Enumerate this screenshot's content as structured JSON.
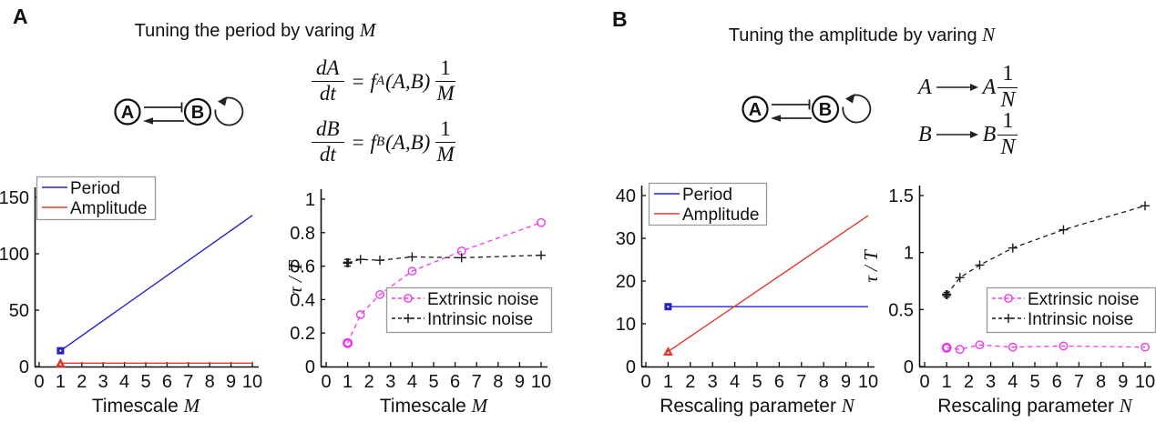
{
  "figure": {
    "panels": [
      {
        "label": "A",
        "title_text": "Tuning the period by varing ",
        "title_var": "M",
        "diagram": {
          "node_a": "A",
          "node_b": "B"
        },
        "equations": [
          {
            "lhs_num": "dA",
            "lhs_den": "dt",
            "equals": "=",
            "f": "f",
            "f_sub": "A",
            "args": "(A,B)",
            "rhs_num": "1",
            "rhs_den": "M"
          },
          {
            "lhs_num": "dB",
            "lhs_den": "dt",
            "equals": "=",
            "f": "f",
            "f_sub": "B",
            "args": "(A,B)",
            "rhs_num": "1",
            "rhs_den": "M"
          }
        ]
      },
      {
        "label": "B",
        "title_text": "Tuning the amplitude by varing ",
        "title_var": "N",
        "diagram": {
          "node_a": "A",
          "node_b": "B"
        },
        "reactions": [
          {
            "lhs": "A",
            "rhs": "A",
            "frac_num": "1",
            "frac_den": "N"
          },
          {
            "lhs": "B",
            "rhs": "B",
            "frac_num": "1",
            "frac_den": "N"
          }
        ]
      }
    ]
  },
  "colors": {
    "period": "#2222CC",
    "amplitude": "#E53A2E",
    "extrinsic": "#EE3BEE",
    "intrinsic": "#1A1A1A",
    "axis": "#111111",
    "legend_border": "#9A9A9A"
  },
  "chart_data": [
    {
      "id": "period-vs-timescale",
      "type": "line",
      "xlabel": "Timescale ",
      "xlabel_var": "M",
      "ylabel": null,
      "xlim": [
        0,
        10
      ],
      "ylim": [
        0,
        157
      ],
      "xticks": [
        0,
        1,
        2,
        3,
        4,
        5,
        6,
        7,
        8,
        9,
        10
      ],
      "ytick_values": [
        0,
        50,
        100,
        150
      ],
      "ytick_labels": [
        "0",
        "50",
        "100",
        "150"
      ],
      "legend_position": "top-left",
      "series": [
        {
          "name": "Period",
          "color": "#2222CC",
          "line_style": "solid",
          "marker": "square",
          "marker_only_first": true,
          "emphasize_first": false,
          "error_bar_first": null,
          "x": [
            1,
            10
          ],
          "y": [
            14,
            134
          ]
        },
        {
          "name": "Amplitude",
          "color": "#E53A2E",
          "line_style": "solid",
          "marker": "triangle",
          "marker_only_first": true,
          "emphasize_first": false,
          "error_bar_first": null,
          "x": [
            1,
            10
          ],
          "y": [
            3,
            3
          ]
        }
      ]
    },
    {
      "id": "noise-vs-timescale",
      "type": "line",
      "xlabel": "Timescale ",
      "xlabel_var": "M",
      "ylabel": "τ / T",
      "xlim": [
        0,
        10
      ],
      "ylim": [
        0,
        1.03
      ],
      "xticks": [
        0,
        1,
        2,
        3,
        4,
        5,
        6,
        7,
        8,
        9,
        10
      ],
      "ytick_values": [
        0,
        0.2,
        0.4,
        0.6,
        0.8,
        1
      ],
      "ytick_labels": [
        "0",
        "0.2",
        "0.4",
        "0.6",
        "0.8",
        "1"
      ],
      "legend_position": "mid-right",
      "series": [
        {
          "name": "Extrinsic noise",
          "color": "#EE3BEE",
          "line_style": "dashed",
          "marker": "circle",
          "marker_only_first": false,
          "emphasize_first": true,
          "error_bar_first": null,
          "x": [
            1,
            1.6,
            2.5,
            4,
            6.3,
            10
          ],
          "y": [
            0.14,
            0.31,
            0.43,
            0.57,
            0.69,
            0.86
          ]
        },
        {
          "name": "Intrinsic noise",
          "color": "#1A1A1A",
          "line_style": "dashed",
          "marker": "plus",
          "marker_only_first": false,
          "emphasize_first": true,
          "error_bar_first": 0.02,
          "x": [
            1,
            1.6,
            2.5,
            4,
            6.3,
            10
          ],
          "y": [
            0.62,
            0.64,
            0.635,
            0.655,
            0.65,
            0.665
          ]
        }
      ]
    },
    {
      "id": "period-vs-rescaling",
      "type": "line",
      "xlabel": "Rescaling parameter ",
      "xlabel_var": "N",
      "ylabel": null,
      "xlim": [
        0,
        10
      ],
      "ylim": [
        0,
        43
      ],
      "xticks": [
        0,
        1,
        2,
        3,
        4,
        5,
        6,
        7,
        8,
        9,
        10
      ],
      "ytick_values": [
        0,
        10,
        20,
        30,
        40
      ],
      "ytick_labels": [
        "0",
        "10",
        "20",
        "30",
        "40"
      ],
      "legend_position": "top-left",
      "series": [
        {
          "name": "Period",
          "color": "#2222CC",
          "line_style": "solid",
          "marker": "square",
          "marker_only_first": true,
          "emphasize_first": false,
          "error_bar_first": null,
          "x": [
            1,
            10
          ],
          "y": [
            14,
            14
          ]
        },
        {
          "name": "Amplitude",
          "color": "#E53A2E",
          "line_style": "solid",
          "marker": "triangle",
          "marker_only_first": true,
          "emphasize_first": false,
          "error_bar_first": null,
          "x": [
            1,
            10
          ],
          "y": [
            3.5,
            35.3
          ]
        }
      ]
    },
    {
      "id": "noise-vs-rescaling",
      "type": "line",
      "xlabel": "Rescaling parameter ",
      "xlabel_var": "N",
      "ylabel": "τ / T",
      "xlim": [
        0,
        10
      ],
      "ylim": [
        0,
        1.55
      ],
      "xticks": [
        0,
        1,
        2,
        3,
        4,
        5,
        6,
        7,
        8,
        9,
        10
      ],
      "ytick_values": [
        0,
        0.5,
        1,
        1.5
      ],
      "ytick_labels": [
        "0",
        "0.5",
        "1",
        "1.5"
      ],
      "legend_position": "mid-right",
      "series": [
        {
          "name": "Extrinsic noise",
          "color": "#EE3BEE",
          "line_style": "dashed",
          "marker": "circle",
          "marker_only_first": false,
          "emphasize_first": true,
          "error_bar_first": null,
          "x": [
            1,
            1.6,
            2.5,
            4,
            6.3,
            10
          ],
          "y": [
            0.165,
            0.15,
            0.19,
            0.17,
            0.18,
            0.17
          ]
        },
        {
          "name": "Intrinsic noise",
          "color": "#1A1A1A",
          "line_style": "dashed",
          "marker": "plus",
          "marker_only_first": false,
          "emphasize_first": true,
          "error_bar_first": 0.02,
          "x": [
            1,
            1.6,
            2.5,
            4,
            6.3,
            10
          ],
          "y": [
            0.63,
            0.78,
            0.89,
            1.04,
            1.2,
            1.41
          ]
        }
      ]
    }
  ]
}
